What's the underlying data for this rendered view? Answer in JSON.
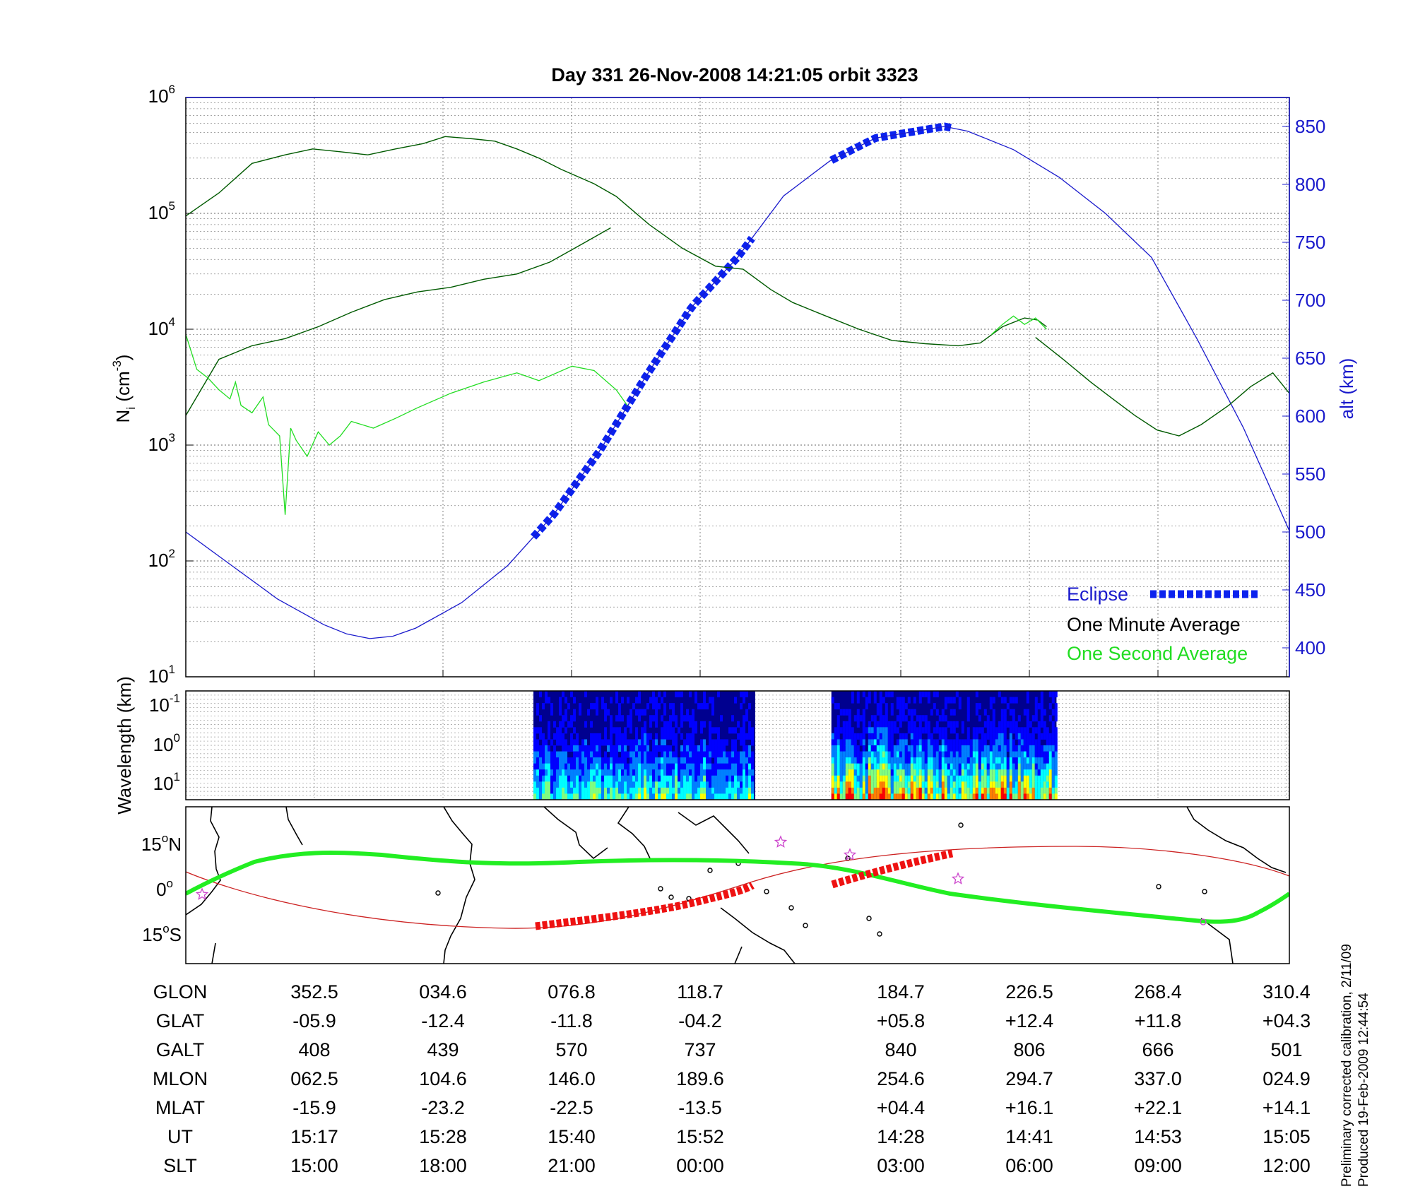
{
  "title": "Day 331  26-Nov-2008 14:21:05   orbit 3323",
  "side_note_1": "Preliminary corrected calibration, 2/11/09",
  "side_note_2": "Produced 19-Feb-2009 12:44:54",
  "colors": {
    "ion_density_minute": "#005a00",
    "ion_density_second": "#22dd22",
    "altitude": "#1a1acc",
    "eclipse": "#0b22ee",
    "track_day": "#22ee22",
    "track_eclipse": "#ee1111",
    "track_line": "#cc2222",
    "stars": "#cc44cc"
  },
  "chart_data": [
    {
      "type": "line",
      "panel": "ion density and altitude",
      "ylabel": "N",
      "ylabel_sub": "i",
      "ylabel_unit": " (cm",
      "ylabel_exp": "-3",
      "ylabel_close": ")",
      "yscale": "log",
      "ylim": [
        10,
        1000000
      ],
      "y_ticks": [
        {
          "base": "10",
          "exp": "6",
          "value": 1000000
        },
        {
          "base": "10",
          "exp": "5",
          "value": 100000
        },
        {
          "base": "10",
          "exp": "4",
          "value": 10000
        },
        {
          "base": "10",
          "exp": "3",
          "value": 1000
        },
        {
          "base": "10",
          "exp": "2",
          "value": 100
        },
        {
          "base": "10",
          "exp": "1",
          "value": 10
        }
      ],
      "y2label": "alt (km)",
      "y2lim": [
        375,
        875
      ],
      "y2_ticks": [
        "400",
        "450",
        "500",
        "550",
        "600",
        "650",
        "700",
        "750",
        "800",
        "850"
      ],
      "xlim": [
        0,
        1
      ],
      "grid": true,
      "legend_position": "bottom-right",
      "legend": [
        "Eclipse",
        "One Minute Average",
        "One Second Average"
      ],
      "series": [
        {
          "name": "One Minute Average",
          "segments": [
            [
              [
                0.0,
                95000
              ],
              [
                0.03,
                150000
              ],
              [
                0.06,
                270000
              ],
              [
                0.09,
                320000
              ],
              [
                0.115,
                360000
              ],
              [
                0.14,
                340000
              ],
              [
                0.165,
                320000
              ],
              [
                0.19,
                360000
              ],
              [
                0.215,
                400000
              ],
              [
                0.235,
                460000
              ],
              [
                0.26,
                440000
              ],
              [
                0.28,
                420000
              ],
              [
                0.3,
                360000
              ],
              [
                0.32,
                300000
              ],
              [
                0.34,
                240000
              ],
              [
                0.37,
                180000
              ],
              [
                0.39,
                140000
              ],
              [
                0.42,
                80000
              ],
              [
                0.45,
                50000
              ],
              [
                0.48,
                35000
              ],
              [
                0.505,
                33000
              ],
              [
                0.53,
                22000
              ],
              [
                0.55,
                17000
              ],
              [
                0.58,
                13000
              ],
              [
                0.61,
                10000
              ],
              [
                0.64,
                8000
              ],
              [
                0.67,
                7500
              ],
              [
                0.7,
                7200
              ],
              [
                0.72,
                7600
              ],
              [
                0.74,
                10500
              ],
              [
                0.76,
                12500
              ],
              [
                0.772,
                12000
              ],
              [
                0.78,
                10500
              ]
            ],
            [
              [
                0.77,
                8500
              ],
              [
                0.795,
                5500
              ],
              [
                0.82,
                3500
              ],
              [
                0.84,
                2500
              ],
              [
                0.86,
                1800
              ],
              [
                0.88,
                1350
              ],
              [
                0.9,
                1200
              ],
              [
                0.92,
                1500
              ],
              [
                0.945,
                2200
              ],
              [
                0.965,
                3200
              ],
              [
                0.985,
                4200
              ],
              [
                1.0,
                2800
              ]
            ],
            [
              [
                0.0,
                1800
              ],
              [
                0.03,
                5500
              ],
              [
                0.06,
                7200
              ],
              [
                0.09,
                8300
              ],
              [
                0.12,
                10500
              ],
              [
                0.15,
                14000
              ],
              [
                0.18,
                18000
              ],
              [
                0.21,
                21000
              ],
              [
                0.24,
                23000
              ],
              [
                0.27,
                27000
              ],
              [
                0.3,
                30000
              ],
              [
                0.33,
                38000
              ],
              [
                0.36,
                55000
              ],
              [
                0.385,
                75000
              ]
            ]
          ]
        },
        {
          "name": "One Second Average",
          "segments": [
            [
              [
                0.73,
                9000
              ],
              [
                0.74,
                11000
              ],
              [
                0.75,
                13000
              ],
              [
                0.76,
                11000
              ],
              [
                0.77,
                12500
              ],
              [
                0.78,
                10000
              ]
            ],
            [
              [
                0.0,
                9000
              ],
              [
                0.01,
                4500
              ],
              [
                0.02,
                3800
              ],
              [
                0.03,
                3000
              ],
              [
                0.04,
                2500
              ],
              [
                0.045,
                3500
              ],
              [
                0.05,
                2200
              ],
              [
                0.06,
                1900
              ],
              [
                0.07,
                2600
              ],
              [
                0.075,
                1500
              ],
              [
                0.085,
                1200
              ],
              [
                0.09,
                250
              ],
              [
                0.095,
                1400
              ],
              [
                0.1,
                1100
              ],
              [
                0.11,
                800
              ],
              [
                0.12,
                1300
              ],
              [
                0.13,
                1000
              ],
              [
                0.14,
                1200
              ],
              [
                0.15,
                1600
              ],
              [
                0.17,
                1400
              ],
              [
                0.19,
                1700
              ],
              [
                0.21,
                2100
              ],
              [
                0.24,
                2800
              ],
              [
                0.27,
                3500
              ],
              [
                0.3,
                4200
              ],
              [
                0.32,
                3600
              ],
              [
                0.35,
                4800
              ],
              [
                0.37,
                4400
              ],
              [
                0.39,
                3000
              ],
              [
                0.4,
                2200
              ]
            ]
          ]
        },
        {
          "name": "altitude",
          "axis": "right",
          "points": [
            [
              0.0,
              500
            ],
            [
              0.0417,
              471
            ],
            [
              0.0833,
              442
            ],
            [
              0.125,
              420
            ],
            [
              0.1458,
              412
            ],
            [
              0.1667,
              408
            ],
            [
              0.1875,
              410
            ],
            [
              0.2083,
              417
            ],
            [
              0.25,
              439
            ],
            [
              0.2917,
              471
            ],
            [
              0.3333,
              515
            ],
            [
              0.375,
              570
            ],
            [
              0.4167,
              634
            ],
            [
              0.4583,
              694
            ],
            [
              0.5,
              737
            ],
            [
              0.5417,
              790
            ],
            [
              0.5833,
              820
            ],
            [
              0.625,
              840
            ],
            [
              0.6875,
              850
            ],
            [
              0.7083,
              846
            ],
            [
              0.75,
              830
            ],
            [
              0.7917,
              806
            ],
            [
              0.8333,
              775
            ],
            [
              0.875,
              737
            ],
            [
              0.9167,
              666
            ],
            [
              0.9583,
              590
            ],
            [
              1.0,
              501
            ]
          ]
        },
        {
          "name": "Eclipse",
          "axis": "right",
          "segments": [
            [
              0.315,
              0.513
            ],
            [
              0.585,
              0.695
            ]
          ]
        }
      ]
    },
    {
      "type": "heatmap",
      "panel": "spectrogram",
      "ylabel": "Wavelength (km)",
      "y_ticks": [
        {
          "base": "10",
          "exp": "-1"
        },
        {
          "base": "10",
          "exp": "0"
        },
        {
          "base": "10",
          "exp": "1"
        }
      ],
      "segments": [
        [
          0.315,
          0.516
        ],
        [
          0.585,
          0.789
        ]
      ],
      "colormap": [
        "#00008f",
        "#0000ff",
        "#0080ff",
        "#00ffff",
        "#80ff80",
        "#ffff00",
        "#ff8000",
        "#ff0000"
      ]
    },
    {
      "type": "map",
      "panel": "ground track",
      "y_ticks": [
        {
          "deg": "15",
          "dir": "N"
        },
        {
          "deg": "0",
          "dir": ""
        },
        {
          "deg": "15",
          "dir": "S"
        }
      ],
      "ylim": [
        -25,
        25
      ]
    }
  ],
  "table": {
    "rows": [
      {
        "label": "GLON",
        "values": [
          "352.5",
          "034.6",
          "076.8",
          "118.7",
          "184.7",
          "226.5",
          "268.4",
          "310.4"
        ]
      },
      {
        "label": "GLAT",
        "values": [
          "-05.9",
          "-12.4",
          "-11.8",
          "-04.2",
          "+05.8",
          "+12.4",
          "+11.8",
          "+04.3"
        ]
      },
      {
        "label": "GALT",
        "values": [
          "408",
          "439",
          "570",
          "737",
          "840",
          "806",
          "666",
          "501"
        ]
      },
      {
        "label": "MLON",
        "values": [
          "062.5",
          "104.6",
          "146.0",
          "189.6",
          "254.6",
          "294.7",
          "337.0",
          "024.9"
        ]
      },
      {
        "label": "MLAT",
        "values": [
          "-15.9",
          "-23.2",
          "-22.5",
          "-13.5",
          "+04.4",
          "+16.1",
          "+22.1",
          "+14.1"
        ]
      },
      {
        "label": "UT",
        "values": [
          "15:17",
          "15:28",
          "15:40",
          "15:52",
          "14:28",
          "14:41",
          "14:53",
          "15:05"
        ]
      },
      {
        "label": "SLT",
        "values": [
          "15:00",
          "18:00",
          "21:00",
          "00:00",
          "03:00",
          "06:00",
          "09:00",
          "12:00"
        ]
      }
    ]
  }
}
